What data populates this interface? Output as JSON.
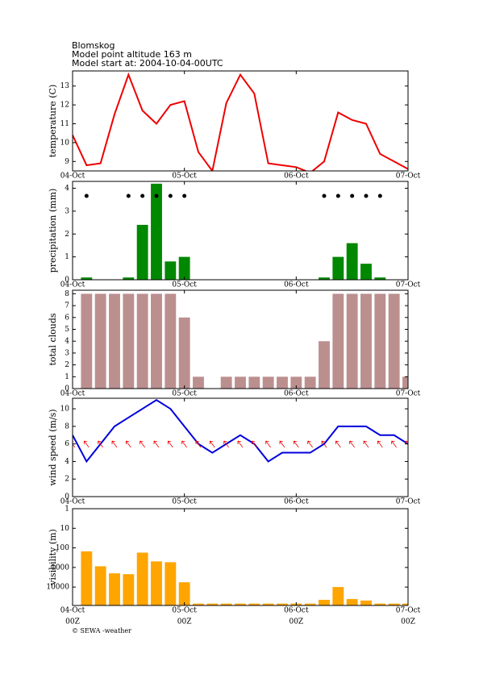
{
  "header": {
    "station": "Blomskog",
    "altitude": "Model point altitude  163 m",
    "model_start": "Model start at: 2004-10-04-00UTC"
  },
  "footer": "© SEWA -weather",
  "chart_data": [
    {
      "type": "line",
      "ylabel": "temperature (C)",
      "color": "#ee0000",
      "x": [
        0,
        3,
        6,
        9,
        12,
        15,
        18,
        21,
        24,
        27,
        30,
        33,
        36,
        39,
        42,
        45,
        48,
        51,
        54,
        57,
        60,
        63,
        66,
        69,
        72
      ],
      "values": [
        10.4,
        8.8,
        8.9,
        11.5,
        13.6,
        11.7,
        11.0,
        12.0,
        12.2,
        9.5,
        8.5,
        12.1,
        13.6,
        12.6,
        8.9,
        8.8,
        8.7,
        8.4,
        9.0,
        11.6,
        11.2,
        11.0,
        9.4,
        9.0,
        8.6
      ],
      "xlim": [
        0,
        72
      ],
      "xticks": [
        {
          "value": 0,
          "label": "04-Oct"
        },
        {
          "value": 24,
          "label": "05-Oct"
        },
        {
          "value": 48,
          "label": "06-Oct"
        },
        {
          "value": 72,
          "label": "07-Oct"
        }
      ],
      "ylim": [
        8.5,
        13.8
      ],
      "yticks": [
        9,
        10,
        11,
        12,
        13
      ]
    },
    {
      "type": "bar",
      "ylabel": "precipitation (mm)",
      "color": "#008800",
      "show_symbols": true,
      "x": [
        0,
        3,
        6,
        9,
        12,
        15,
        18,
        21,
        24,
        27,
        30,
        33,
        36,
        39,
        42,
        45,
        48,
        51,
        54,
        57,
        60,
        63,
        66,
        69,
        72
      ],
      "values": [
        0,
        0.1,
        0,
        0,
        0.1,
        2.4,
        4.2,
        0.8,
        1.0,
        0,
        0,
        0,
        0,
        0,
        0,
        0,
        0,
        0,
        0.1,
        1.0,
        1.6,
        0.7,
        0.1,
        0,
        0
      ],
      "xlim": [
        0,
        72
      ],
      "xticks": [
        {
          "value": 0,
          "label": "04-Oct"
        },
        {
          "value": 24,
          "label": "05-Oct"
        },
        {
          "value": 48,
          "label": "06-Oct"
        },
        {
          "value": 72,
          "label": "07-Oct"
        }
      ],
      "ylim": [
        0,
        4.3
      ],
      "yticks": [
        0,
        1,
        2,
        3,
        4
      ]
    },
    {
      "type": "bar",
      "ylabel": "total clouds",
      "color": "#bc8f8f",
      "x": [
        0,
        3,
        6,
        9,
        12,
        15,
        18,
        21,
        24,
        27,
        30,
        33,
        36,
        39,
        42,
        45,
        48,
        51,
        54,
        57,
        60,
        63,
        66,
        69,
        72
      ],
      "values": [
        0,
        8,
        8,
        8,
        8,
        8,
        8,
        8,
        6,
        1,
        0,
        1,
        1,
        1,
        1,
        1,
        1,
        1,
        4,
        8,
        8,
        8,
        8,
        8,
        1
      ],
      "xlim": [
        0,
        72
      ],
      "xticks": [
        {
          "value": 0,
          "label": "04-Oct"
        },
        {
          "value": 24,
          "label": "05-Oct"
        },
        {
          "value": 48,
          "label": "06-Oct"
        },
        {
          "value": 72,
          "label": "07-Oct"
        }
      ],
      "ylim": [
        0,
        8.3
      ],
      "yticks": [
        0,
        1,
        2,
        3,
        4,
        5,
        6,
        7,
        8
      ]
    },
    {
      "type": "line",
      "ylabel": "wind speed (m/s)",
      "color": "#0000dd",
      "direction_arrows": true,
      "x": [
        0,
        3,
        6,
        9,
        12,
        15,
        18,
        21,
        24,
        27,
        30,
        33,
        36,
        39,
        42,
        45,
        48,
        51,
        54,
        57,
        60,
        63,
        66,
        69,
        72
      ],
      "values": [
        7,
        4,
        6,
        8,
        9,
        10,
        11,
        10,
        8,
        6,
        5,
        6,
        7,
        6,
        4,
        5,
        5,
        5,
        6,
        8,
        8,
        8,
        7,
        7,
        6
      ],
      "xlim": [
        0,
        72
      ],
      "xticks": [
        {
          "value": 0,
          "label": "04-Oct"
        },
        {
          "value": 24,
          "label": "05-Oct"
        },
        {
          "value": 48,
          "label": "06-Oct"
        },
        {
          "value": 72,
          "label": "07-Oct"
        }
      ],
      "ylim": [
        0,
        11.2
      ],
      "yticks": [
        0,
        2,
        4,
        6,
        8,
        10
      ]
    },
    {
      "type": "bar",
      "ylabel": "visibility (m)",
      "color": "#ffa500",
      "log": true,
      "x": [
        0,
        3,
        6,
        9,
        12,
        15,
        18,
        21,
        24,
        27,
        30,
        33,
        36,
        39,
        42,
        45,
        48,
        51,
        54,
        57,
        60,
        63,
        66,
        69,
        72
      ],
      "values": [
        null,
        150,
        870,
        2000,
        2200,
        175,
        490,
        540,
        5700,
        70000,
        70000,
        70000,
        70000,
        70000,
        70000,
        70000,
        70000,
        70000,
        45000,
        10000,
        41000,
        49000,
        70000,
        70000,
        70000
      ],
      "xlim": [
        0,
        72
      ],
      "xticks": [
        {
          "value": 0,
          "label": "04-Oct"
        },
        {
          "value": 24,
          "label": "05-Oct"
        },
        {
          "value": 48,
          "label": "06-Oct"
        },
        {
          "value": 72,
          "label": "07-Oct"
        }
      ],
      "xtick_sublabels": [
        "00Z",
        "00Z",
        "00Z",
        "00Z"
      ],
      "ylim": [
        87000,
        1
      ],
      "yticks": [
        1,
        10,
        100,
        1000,
        10000
      ]
    }
  ]
}
